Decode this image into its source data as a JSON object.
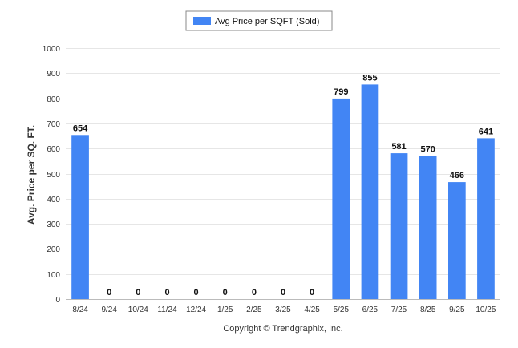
{
  "chart_data": {
    "type": "bar",
    "title": "",
    "xlabel": "",
    "ylabel": "Avg. Price per SQ. FT.",
    "ylim": [
      0,
      1000
    ],
    "yticks": [
      0,
      100,
      200,
      300,
      400,
      500,
      600,
      700,
      800,
      900,
      1000
    ],
    "grid": true,
    "legend_position": "top-center",
    "categories": [
      "8/24",
      "9/24",
      "10/24",
      "11/24",
      "12/24",
      "1/25",
      "2/25",
      "3/25",
      "4/25",
      "5/25",
      "6/25",
      "7/25",
      "8/25",
      "9/25",
      "10/25"
    ],
    "series": [
      {
        "name": "Avg Price per SQFT (Sold)",
        "color": "#4285f4",
        "values": [
          654,
          0,
          0,
          0,
          0,
          0,
          0,
          0,
          0,
          799,
          855,
          581,
          570,
          466,
          641
        ]
      }
    ]
  },
  "credit": "Copyright © Trendgraphix, Inc."
}
